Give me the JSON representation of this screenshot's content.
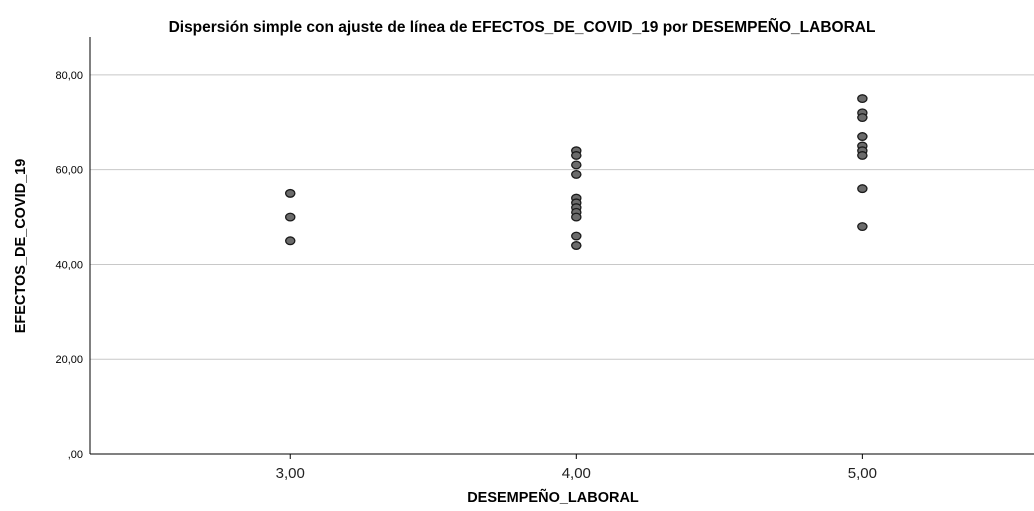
{
  "chart_data": {
    "type": "scatter",
    "title": "Dispersión simple con ajuste de línea de EFECTOS_DE_COVID_19 por DESEMPEÑO_LABORAL",
    "xlabel": "DESEMPEÑO_LABORAL",
    "ylabel": "EFECTOS_DE_COVID_19",
    "xlim": [
      2.3,
      5.6
    ],
    "ylim": [
      0,
      88
    ],
    "grid": true,
    "x_ticks": [
      3,
      4,
      5
    ],
    "x_tick_labels": [
      "3,00",
      "4,00",
      "5,00"
    ],
    "y_ticks": [
      0,
      20,
      40,
      60,
      80
    ],
    "y_tick_labels": [
      ",00",
      "20,00",
      "40,00",
      "60,00",
      "80,00"
    ],
    "point_color": "#6b6b6b",
    "point_edge_color": "#1a1a1a",
    "points": [
      {
        "x": 3,
        "y": 55
      },
      {
        "x": 3,
        "y": 50
      },
      {
        "x": 3,
        "y": 45
      },
      {
        "x": 4,
        "y": 64
      },
      {
        "x": 4,
        "y": 63
      },
      {
        "x": 4,
        "y": 61
      },
      {
        "x": 4,
        "y": 59
      },
      {
        "x": 4,
        "y": 54
      },
      {
        "x": 4,
        "y": 53
      },
      {
        "x": 4,
        "y": 52
      },
      {
        "x": 4,
        "y": 51
      },
      {
        "x": 4,
        "y": 50
      },
      {
        "x": 4,
        "y": 46
      },
      {
        "x": 4,
        "y": 44
      },
      {
        "x": 5,
        "y": 75
      },
      {
        "x": 5,
        "y": 72
      },
      {
        "x": 5,
        "y": 71
      },
      {
        "x": 5,
        "y": 67
      },
      {
        "x": 5,
        "y": 65
      },
      {
        "x": 5,
        "y": 64
      },
      {
        "x": 5,
        "y": 63
      },
      {
        "x": 5,
        "y": 56
      },
      {
        "x": 5,
        "y": 48
      }
    ]
  }
}
